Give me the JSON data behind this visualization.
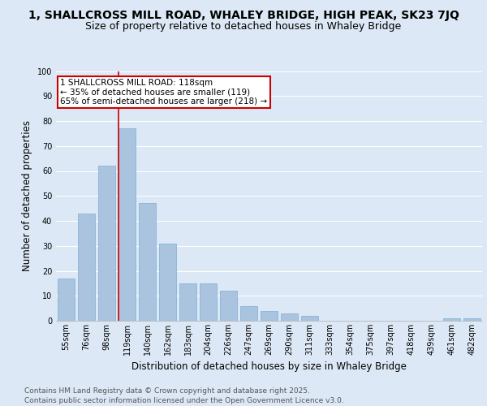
{
  "title": "1, SHALLCROSS MILL ROAD, WHALEY BRIDGE, HIGH PEAK, SK23 7JQ",
  "subtitle": "Size of property relative to detached houses in Whaley Bridge",
  "xlabel": "Distribution of detached houses by size in Whaley Bridge",
  "ylabel": "Number of detached properties",
  "categories": [
    "55sqm",
    "76sqm",
    "98sqm",
    "119sqm",
    "140sqm",
    "162sqm",
    "183sqm",
    "204sqm",
    "226sqm",
    "247sqm",
    "269sqm",
    "290sqm",
    "311sqm",
    "333sqm",
    "354sqm",
    "375sqm",
    "397sqm",
    "418sqm",
    "439sqm",
    "461sqm",
    "482sqm"
  ],
  "values": [
    17,
    43,
    62,
    77,
    47,
    31,
    15,
    15,
    12,
    6,
    4,
    3,
    2,
    0,
    0,
    0,
    0,
    0,
    0,
    1,
    1
  ],
  "bar_color": "#aac4df",
  "bar_edge_color": "#7aafd4",
  "background_color": "#dce8f5",
  "fig_background_color": "#dce8f5",
  "grid_color": "#ffffff",
  "vline_x_index": 3,
  "vline_color": "#cc0000",
  "annotation_text": "1 SHALLCROSS MILL ROAD: 118sqm\n← 35% of detached houses are smaller (119)\n65% of semi-detached houses are larger (218) →",
  "annotation_box_edge_color": "#cc0000",
  "ylim": [
    0,
    100
  ],
  "yticks": [
    0,
    10,
    20,
    30,
    40,
    50,
    60,
    70,
    80,
    90,
    100
  ],
  "footer_line1": "Contains HM Land Registry data © Crown copyright and database right 2025.",
  "footer_line2": "Contains public sector information licensed under the Open Government Licence v3.0.",
  "title_fontsize": 10,
  "subtitle_fontsize": 9,
  "axis_label_fontsize": 8.5,
  "tick_fontsize": 7,
  "footer_fontsize": 6.5,
  "annot_fontsize": 7.5
}
